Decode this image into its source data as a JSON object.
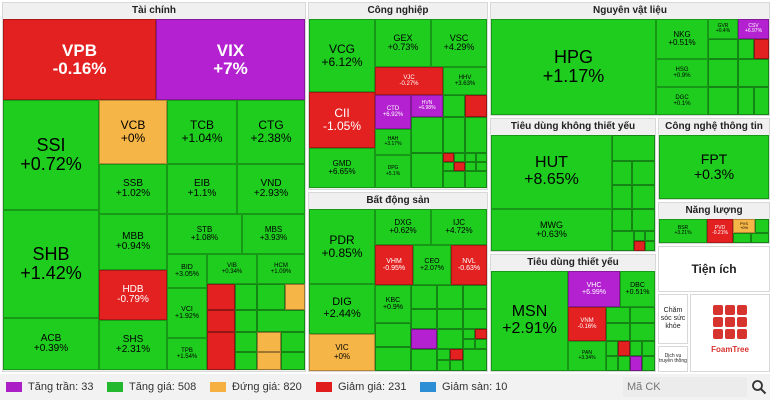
{
  "sectors": {
    "tai_chinh": "Tài chính",
    "cong_nghiep": "Công nghiệp",
    "nguyen_vat_lieu": "Nguyên vật liệu",
    "bat_dong_san": "Bất động sản",
    "tieu_dung_khong_thiet_yeu": "Tiêu dùng không thiết yếu",
    "cong_nghe_thong_tin": "Công nghệ thông tin",
    "nang_luong": "Năng lượng",
    "tieu_dung_thiet_yeu": "Tiêu dùng thiết yếu"
  },
  "side_panels": {
    "tien_ich": "Tiện ích",
    "cham_soc_suc_khoe": "Chăm sóc sức khỏe",
    "dich_vu_truyen_thong": "Dịch vụ truyền thông",
    "logo_text": "FoamTree"
  },
  "stocks": {
    "VPB": {
      "code": "VPB",
      "chg": "-0.16%"
    },
    "VIX": {
      "code": "VIX",
      "chg": "+7%"
    },
    "SSI": {
      "code": "SSI",
      "chg": "+0.72%"
    },
    "VCB": {
      "code": "VCB",
      "chg": "+0%"
    },
    "TCB": {
      "code": "TCB",
      "chg": "+1.04%"
    },
    "CTG": {
      "code": "CTG",
      "chg": "+2.38%"
    },
    "SSB": {
      "code": "SSB",
      "chg": "+1.02%"
    },
    "EIB": {
      "code": "EIB",
      "chg": "+1.1%"
    },
    "VND": {
      "code": "VND",
      "chg": "+2.93%"
    },
    "SHB": {
      "code": "SHB",
      "chg": "+1.42%"
    },
    "MBB": {
      "code": "MBB",
      "chg": "+0.94%"
    },
    "STB": {
      "code": "STB",
      "chg": "+1.08%"
    },
    "MBS": {
      "code": "MBS",
      "chg": "+3.93%"
    },
    "HDB": {
      "code": "HDB",
      "chg": "-0.79%"
    },
    "BID": {
      "code": "BID",
      "chg": "+3.05%"
    },
    "VIB": {
      "code": "VIB",
      "chg": "+0.34%"
    },
    "HCM": {
      "code": "HCM",
      "chg": "+1.09%"
    },
    "VCI": {
      "code": "VCI",
      "chg": "+1.92%"
    },
    "ACB": {
      "code": "ACB",
      "chg": "+0.39%"
    },
    "SHS": {
      "code": "SHS",
      "chg": "+2.31%"
    },
    "TPB": {
      "code": "TPB",
      "chg": "+1.54%"
    },
    "VCG": {
      "code": "VCG",
      "chg": "+6.12%"
    },
    "GEX": {
      "code": "GEX",
      "chg": "+0.73%"
    },
    "VSC": {
      "code": "VSC",
      "chg": "+4.29%"
    },
    "VJC": {
      "code": "VJC",
      "chg": "-0.27%"
    },
    "HHV": {
      "code": "HHV",
      "chg": "+3.63%"
    },
    "CII": {
      "code": "CII",
      "chg": "-1.05%"
    },
    "CTD": {
      "code": "CTD",
      "chg": "+6.92%"
    },
    "HVN": {
      "code": "HVN",
      "chg": "+6.98%"
    },
    "HAH": {
      "code": "HAH",
      "chg": "+3.17%"
    },
    "GMD": {
      "code": "GMD",
      "chg": "+6.65%"
    },
    "DPG": {
      "code": "DPG",
      "chg": "+5.1%"
    },
    "HPG": {
      "code": "HPG",
      "chg": "+1.17%"
    },
    "NKG": {
      "code": "NKG",
      "chg": "+0.51%"
    },
    "HSG": {
      "code": "HSG",
      "chg": "+0.9%"
    },
    "DGC": {
      "code": "DGC",
      "chg": "+0.1%"
    },
    "GVR": {
      "code": "GVR",
      "chg": "+0.4%"
    },
    "CSV": {
      "code": "CSV",
      "chg": "+6.97%"
    },
    "HUT": {
      "code": "HUT",
      "chg": "+8.65%"
    },
    "MWG": {
      "code": "MWG",
      "chg": "+0.63%"
    },
    "FPT": {
      "code": "FPT",
      "chg": "+0.3%"
    },
    "BSR": {
      "code": "BSR",
      "chg": "+3.21%"
    },
    "PVD": {
      "code": "PVD",
      "chg": "-0.21%"
    },
    "PVS": {
      "code": "PVS",
      "chg": "+0%"
    },
    "PDR": {
      "code": "PDR",
      "chg": "+0.85%"
    },
    "DXG": {
      "code": "DXG",
      "chg": "+0.62%"
    },
    "IJC": {
      "code": "IJC",
      "chg": "+4.72%"
    },
    "VHM": {
      "code": "VHM",
      "chg": "-0.95%"
    },
    "CEO": {
      "code": "CEO",
      "chg": "+2.07%"
    },
    "NVL": {
      "code": "NVL",
      "chg": "-0.63%"
    },
    "DIG": {
      "code": "DIG",
      "chg": "+2.44%"
    },
    "KBC": {
      "code": "KBC",
      "chg": "+0.9%"
    },
    "VIC": {
      "code": "VIC",
      "chg": "+0%"
    },
    "MSN": {
      "code": "MSN",
      "chg": "+2.91%"
    },
    "VHC": {
      "code": "VHC",
      "chg": "+6.99%"
    },
    "DBC": {
      "code": "DBC",
      "chg": "+0.51%"
    },
    "VNM": {
      "code": "VNM",
      "chg": "-0.16%"
    },
    "PAN": {
      "code": "PAN",
      "chg": "+3.34%"
    }
  },
  "legend": [
    {
      "label": "Tăng trần: 33",
      "color": "#aa1fc6"
    },
    {
      "label": "Tăng giá: 508",
      "color": "#23b82d"
    },
    {
      "label": "Đứng giá: 820",
      "color": "#f5b041"
    },
    {
      "label": "Giảm giá: 231",
      "color": "#e11c1c"
    },
    {
      "label": "Giảm sàn: 10",
      "color": "#2c8fd6"
    }
  ],
  "search": {
    "placeholder": "Mã CK"
  },
  "colors": {
    "ceiling": "#b321d0",
    "up": "#1fcd1f",
    "flat": "#f6b547",
    "down": "#e32121",
    "floor": "#2c8fd6"
  }
}
